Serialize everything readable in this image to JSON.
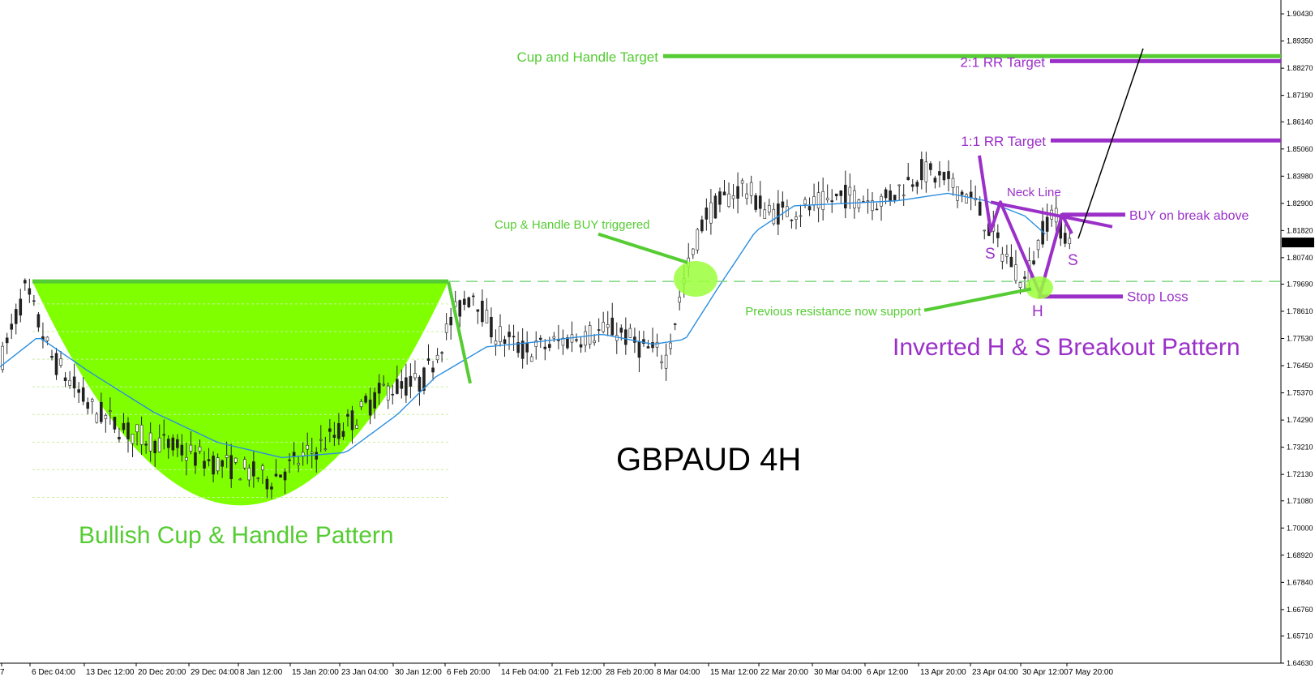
{
  "chart_data": {
    "type": "candlestick",
    "title": "GBPAUD 4H",
    "ylim": [
      1.6463,
      1.9098
    ],
    "y_ticks": [
      "1.90430",
      "1.89350",
      "1.88270",
      "1.87190",
      "1.86140",
      "1.85060",
      "1.83980",
      "1.82900",
      "1.81820",
      "1.80740",
      "1.79690",
      "1.78610",
      "1.77530",
      "1.76450",
      "1.75370",
      "1.74290",
      "1.73210",
      "1.72130",
      "1.71080",
      "1.70000",
      "1.68920",
      "1.67840",
      "1.66760",
      "1.65710",
      "1.64630"
    ],
    "current_price": "1.81346",
    "x_ticks": [
      "7",
      "6 Dec 04:00",
      "13 Dec 12:00",
      "20 Dec 20:00",
      "29 Dec 04:00",
      "8 Jan 12:00",
      "15 Jan 20:00",
      "23 Jan 04:00",
      "30 Jan 12:00",
      "6 Feb 20:00",
      "14 Feb 04:00",
      "21 Feb 12:00",
      "28 Feb 20:00",
      "8 Mar 04:00",
      "15 Mar 12:00",
      "22 Mar 20:00",
      "30 Mar 04:00",
      "6 Apr 12:00",
      "13 Apr 20:00",
      "23 Apr 04:00",
      "30 Apr 12:00",
      "7 May 20:00"
    ],
    "price_path": [
      [
        0,
        1.765
      ],
      [
        0.02,
        1.795
      ],
      [
        0.04,
        1.768
      ],
      [
        0.07,
        1.748
      ],
      [
        0.1,
        1.738
      ],
      [
        0.13,
        1.733
      ],
      [
        0.16,
        1.727
      ],
      [
        0.19,
        1.723
      ],
      [
        0.21,
        1.719
      ],
      [
        0.24,
        1.729
      ],
      [
        0.265,
        1.738
      ],
      [
        0.3,
        1.755
      ],
      [
        0.33,
        1.758
      ],
      [
        0.355,
        1.785
      ],
      [
        0.37,
        1.794
      ],
      [
        0.383,
        1.779
      ],
      [
        0.41,
        1.77
      ],
      [
        0.45,
        1.776
      ],
      [
        0.48,
        1.779
      ],
      [
        0.5,
        1.772
      ],
      [
        0.52,
        1.768
      ],
      [
        0.535,
        1.8
      ],
      [
        0.55,
        1.824
      ],
      [
        0.58,
        1.836
      ],
      [
        0.6,
        1.825
      ],
      [
        0.63,
        1.827
      ],
      [
        0.66,
        1.832
      ],
      [
        0.69,
        1.83
      ],
      [
        0.72,
        1.842
      ],
      [
        0.745,
        1.836
      ],
      [
        0.76,
        1.83
      ],
      [
        0.78,
        1.812
      ],
      [
        0.8,
        1.798
      ],
      [
        0.82,
        1.826
      ],
      [
        0.835,
        1.814
      ]
    ],
    "moving_average": [
      [
        0,
        1.764
      ],
      [
        0.03,
        1.776
      ],
      [
        0.07,
        1.762
      ],
      [
        0.12,
        1.746
      ],
      [
        0.17,
        1.734
      ],
      [
        0.22,
        1.728
      ],
      [
        0.27,
        1.73
      ],
      [
        0.31,
        1.745
      ],
      [
        0.34,
        1.76
      ],
      [
        0.38,
        1.772
      ],
      [
        0.42,
        1.774
      ],
      [
        0.47,
        1.777
      ],
      [
        0.51,
        1.773
      ],
      [
        0.535,
        1.775
      ],
      [
        0.56,
        1.795
      ],
      [
        0.59,
        1.818
      ],
      [
        0.62,
        1.828
      ],
      [
        0.66,
        1.829
      ],
      [
        0.7,
        1.83
      ],
      [
        0.74,
        1.833
      ],
      [
        0.77,
        1.83
      ],
      [
        0.8,
        1.824
      ],
      [
        0.82,
        1.815
      ]
    ],
    "annotations": {
      "cup_handle_target": {
        "label": "Cup and Handle Target",
        "price": 1.8875
      },
      "rr2_target": {
        "label": "2:1 RR Target",
        "price": 1.8855
      },
      "rr1_target": {
        "label": "1:1 RR Target",
        "price": 1.854
      },
      "neck_line": {
        "label": "Neck Line"
      },
      "buy_break": {
        "label": "BUY on break above"
      },
      "stop_loss": {
        "label": "Stop Loss",
        "price": 1.792
      },
      "previous_resistance": {
        "label": "Previous resistance now support",
        "price": 1.798
      },
      "cup_handle_buy": {
        "label": "Cup & Handle BUY triggered"
      },
      "cup_handle_pattern": {
        "label": "Bullish Cup & Handle Pattern"
      },
      "inverted_hs_pattern": {
        "label": "Inverted H & S Breakout Pattern"
      },
      "left_shoulder": {
        "label": "S"
      },
      "head": {
        "label": "H"
      },
      "right_shoulder": {
        "label": "S"
      }
    },
    "colors": {
      "green": "#55cc33",
      "cup_fill": "#7fff00",
      "purple": "#9b30c8",
      "ma": "#2a8ee0",
      "candles": "#222222"
    }
  }
}
